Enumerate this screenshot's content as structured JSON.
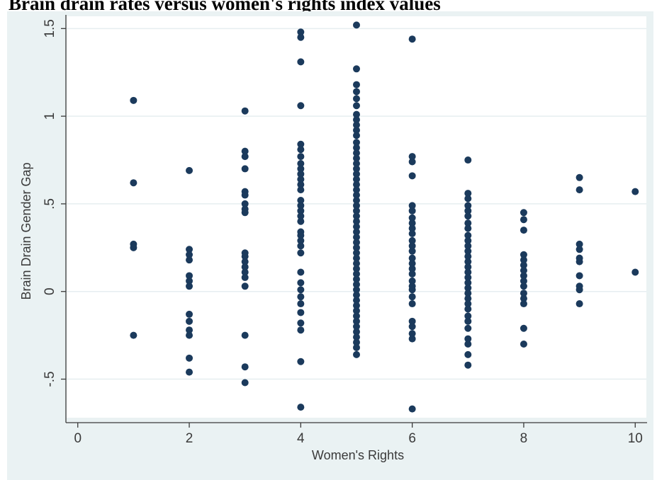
{
  "caption": "Brain drain rates versus women's rights index values",
  "chart_data": {
    "type": "scatter",
    "title": "",
    "xlabel": "Women's Rights",
    "ylabel": "Brain Drain Gender Gap",
    "xlim": [
      -0.2,
      10.2
    ],
    "ylim": [
      -0.72,
      1.57
    ],
    "x_ticks": [
      0,
      2,
      4,
      6,
      8,
      10
    ],
    "x_tick_labels": [
      "0",
      "2",
      "4",
      "6",
      "8",
      "10"
    ],
    "y_ticks": [
      -0.5,
      0,
      0.5,
      1,
      1.5
    ],
    "y_tick_labels": [
      "-.5",
      "0",
      ".5",
      "1",
      "1.5"
    ],
    "grid": "horizontal",
    "legend": "none",
    "colors": {
      "marker": "#1b3a5c",
      "plot_bg": "#ffffff",
      "figure_bg": "#eaf2f3",
      "grid": "#e6eef0",
      "axis": "#3a3a3a"
    },
    "series": [
      {
        "points": [
          [
            1,
            1.09
          ],
          [
            1,
            0.62
          ],
          [
            1,
            0.27
          ],
          [
            1,
            0.25
          ],
          [
            1,
            -0.25
          ],
          [
            2,
            0.69
          ],
          [
            2,
            0.24
          ],
          [
            2,
            0.21
          ],
          [
            2,
            0.18
          ],
          [
            2,
            0.09
          ],
          [
            2,
            0.06
          ],
          [
            2,
            0.03
          ],
          [
            2,
            -0.13
          ],
          [
            2,
            -0.17
          ],
          [
            2,
            -0.22
          ],
          [
            2,
            -0.25
          ],
          [
            2,
            -0.38
          ],
          [
            2,
            -0.46
          ],
          [
            3,
            1.03
          ],
          [
            3,
            0.8
          ],
          [
            3,
            0.77
          ],
          [
            3,
            0.7
          ],
          [
            3,
            0.57
          ],
          [
            3,
            0.55
          ],
          [
            3,
            0.5
          ],
          [
            3,
            0.47
          ],
          [
            3,
            0.45
          ],
          [
            3,
            0.22
          ],
          [
            3,
            0.2
          ],
          [
            3,
            0.17
          ],
          [
            3,
            0.14
          ],
          [
            3,
            0.11
          ],
          [
            3,
            0.08
          ],
          [
            3,
            0.03
          ],
          [
            3,
            -0.25
          ],
          [
            3,
            -0.43
          ],
          [
            3,
            -0.52
          ],
          [
            4,
            1.48
          ],
          [
            4,
            1.45
          ],
          [
            4,
            1.31
          ],
          [
            4,
            1.06
          ],
          [
            4,
            0.84
          ],
          [
            4,
            0.81
          ],
          [
            4,
            0.77
          ],
          [
            4,
            0.73
          ],
          [
            4,
            0.7
          ],
          [
            4,
            0.67
          ],
          [
            4,
            0.64
          ],
          [
            4,
            0.61
          ],
          [
            4,
            0.58
          ],
          [
            4,
            0.52
          ],
          [
            4,
            0.49
          ],
          [
            4,
            0.46
          ],
          [
            4,
            0.43
          ],
          [
            4,
            0.4
          ],
          [
            4,
            0.34
          ],
          [
            4,
            0.32
          ],
          [
            4,
            0.29
          ],
          [
            4,
            0.26
          ],
          [
            4,
            0.22
          ],
          [
            4,
            0.11
          ],
          [
            4,
            0.05
          ],
          [
            4,
            0.01
          ],
          [
            4,
            -0.03
          ],
          [
            4,
            -0.07
          ],
          [
            4,
            -0.12
          ],
          [
            4,
            -0.18
          ],
          [
            4,
            -0.22
          ],
          [
            4,
            -0.4
          ],
          [
            4,
            -0.66
          ],
          [
            5,
            1.52
          ],
          [
            5,
            1.27
          ],
          [
            5,
            1.18
          ],
          [
            5,
            1.14
          ],
          [
            5,
            1.1
          ],
          [
            5,
            1.06
          ],
          [
            5,
            1.01
          ],
          [
            5,
            0.98
          ],
          [
            5,
            0.95
          ],
          [
            5,
            0.92
          ],
          [
            5,
            0.89
          ],
          [
            5,
            0.85
          ],
          [
            5,
            0.82
          ],
          [
            5,
            0.79
          ],
          [
            5,
            0.76
          ],
          [
            5,
            0.73
          ],
          [
            5,
            0.7
          ],
          [
            5,
            0.67
          ],
          [
            5,
            0.64
          ],
          [
            5,
            0.61
          ],
          [
            5,
            0.58
          ],
          [
            5,
            0.55
          ],
          [
            5,
            0.52
          ],
          [
            5,
            0.49
          ],
          [
            5,
            0.46
          ],
          [
            5,
            0.43
          ],
          [
            5,
            0.4
          ],
          [
            5,
            0.37
          ],
          [
            5,
            0.34
          ],
          [
            5,
            0.31
          ],
          [
            5,
            0.28
          ],
          [
            5,
            0.25
          ],
          [
            5,
            0.22
          ],
          [
            5,
            0.19
          ],
          [
            5,
            0.16
          ],
          [
            5,
            0.13
          ],
          [
            5,
            0.1
          ],
          [
            5,
            0.07
          ],
          [
            5,
            0.04
          ],
          [
            5,
            0.01
          ],
          [
            5,
            -0.02
          ],
          [
            5,
            -0.05
          ],
          [
            5,
            -0.08
          ],
          [
            5,
            -0.11
          ],
          [
            5,
            -0.14
          ],
          [
            5,
            -0.17
          ],
          [
            5,
            -0.2
          ],
          [
            5,
            -0.23
          ],
          [
            5,
            -0.26
          ],
          [
            5,
            -0.29
          ],
          [
            5,
            -0.32
          ],
          [
            5,
            -0.36
          ],
          [
            6,
            1.44
          ],
          [
            6,
            0.77
          ],
          [
            6,
            0.74
          ],
          [
            6,
            0.66
          ],
          [
            6,
            0.49
          ],
          [
            6,
            0.46
          ],
          [
            6,
            0.42
          ],
          [
            6,
            0.39
          ],
          [
            6,
            0.36
          ],
          [
            6,
            0.33
          ],
          [
            6,
            0.29
          ],
          [
            6,
            0.26
          ],
          [
            6,
            0.23
          ],
          [
            6,
            0.19
          ],
          [
            6,
            0.16
          ],
          [
            6,
            0.13
          ],
          [
            6,
            0.1
          ],
          [
            6,
            0.06
          ],
          [
            6,
            0.03
          ],
          [
            6,
            0.01
          ],
          [
            6,
            -0.03
          ],
          [
            6,
            -0.07
          ],
          [
            6,
            -0.17
          ],
          [
            6,
            -0.2
          ],
          [
            6,
            -0.24
          ],
          [
            6,
            -0.27
          ],
          [
            6,
            -0.67
          ],
          [
            7,
            0.75
          ],
          [
            7,
            0.56
          ],
          [
            7,
            0.53
          ],
          [
            7,
            0.49
          ],
          [
            7,
            0.46
          ],
          [
            7,
            0.43
          ],
          [
            7,
            0.39
          ],
          [
            7,
            0.36
          ],
          [
            7,
            0.32
          ],
          [
            7,
            0.29
          ],
          [
            7,
            0.26
          ],
          [
            7,
            0.23
          ],
          [
            7,
            0.2
          ],
          [
            7,
            0.17
          ],
          [
            7,
            0.14
          ],
          [
            7,
            0.11
          ],
          [
            7,
            0.08
          ],
          [
            7,
            0.05
          ],
          [
            7,
            0.02
          ],
          [
            7,
            -0.01
          ],
          [
            7,
            -0.04
          ],
          [
            7,
            -0.07
          ],
          [
            7,
            -0.1
          ],
          [
            7,
            -0.14
          ],
          [
            7,
            -0.17
          ],
          [
            7,
            -0.21
          ],
          [
            7,
            -0.27
          ],
          [
            7,
            -0.3
          ],
          [
            7,
            -0.36
          ],
          [
            7,
            -0.42
          ],
          [
            8,
            0.45
          ],
          [
            8,
            0.41
          ],
          [
            8,
            0.35
          ],
          [
            8,
            0.21
          ],
          [
            8,
            0.18
          ],
          [
            8,
            0.15
          ],
          [
            8,
            0.12
          ],
          [
            8,
            0.09
          ],
          [
            8,
            0.06
          ],
          [
            8,
            0.03
          ],
          [
            8,
            -0.01
          ],
          [
            8,
            -0.04
          ],
          [
            8,
            -0.07
          ],
          [
            8,
            -0.21
          ],
          [
            8,
            -0.3
          ],
          [
            9,
            0.65
          ],
          [
            9,
            0.58
          ],
          [
            9,
            0.27
          ],
          [
            9,
            0.24
          ],
          [
            9,
            0.19
          ],
          [
            9,
            0.17
          ],
          [
            9,
            0.09
          ],
          [
            9,
            0.03
          ],
          [
            9,
            0.01
          ],
          [
            9,
            -0.07
          ],
          [
            10,
            0.57
          ],
          [
            10,
            0.11
          ]
        ]
      }
    ]
  }
}
